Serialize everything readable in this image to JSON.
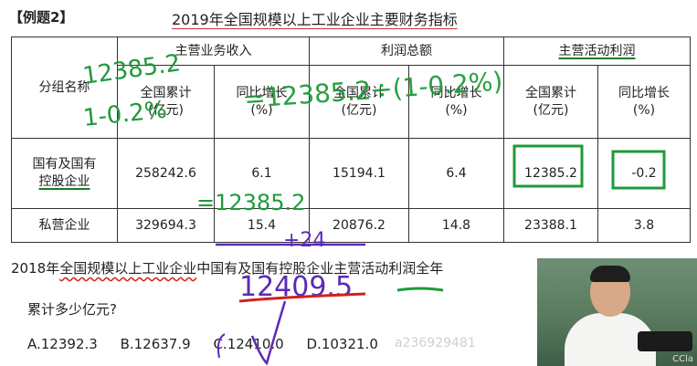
{
  "header": {
    "tag": "【例题2】",
    "title": "2019年全国规模以上工业企业主要财务指标"
  },
  "table": {
    "row_header": "分组名称",
    "groups": [
      "主营业务收入",
      "利润总额",
      "主营活动利润"
    ],
    "sub_headers": [
      "全国累计",
      "(亿元)",
      "同比增长",
      "(%)"
    ],
    "rows": [
      {
        "name_line1": "国有及国有",
        "name_line2": "控股企业",
        "cells": [
          "258242.6",
          "6.1",
          "15194.1",
          "6.4",
          "12385.2",
          "-0.2"
        ]
      },
      {
        "name_line1": "私营企业",
        "name_line2": "",
        "cells": [
          "329694.3",
          "15.4",
          "20876.2",
          "14.8",
          "23388.1",
          "3.8"
        ]
      }
    ]
  },
  "question": {
    "line1_prefix": "2018年",
    "line1_underlined": "全国规模以上工业企业",
    "line1_rest": "中国有及国有控股企业主营活动利润全年",
    "line2": "累计多少亿元?",
    "options": [
      "A.12392.3",
      "B.12637.9",
      "C.12410.0",
      "D.10321.0"
    ]
  },
  "watermark": "a236929481",
  "video": {
    "label": "CCla"
  },
  "annotations": {
    "ink_green_1": "12385.2",
    "ink_green_2": "1-0.2%",
    "ink_green_3": "=12385.2",
    "ink_purple_1": "=12385.2÷(1-0.2%)",
    "ink_purple_2": "+24",
    "ink_purple_3": "12409.5",
    "colors": {
      "green": "#1f9a3a",
      "purple": "#5b2bb5",
      "red": "#d02020"
    }
  }
}
